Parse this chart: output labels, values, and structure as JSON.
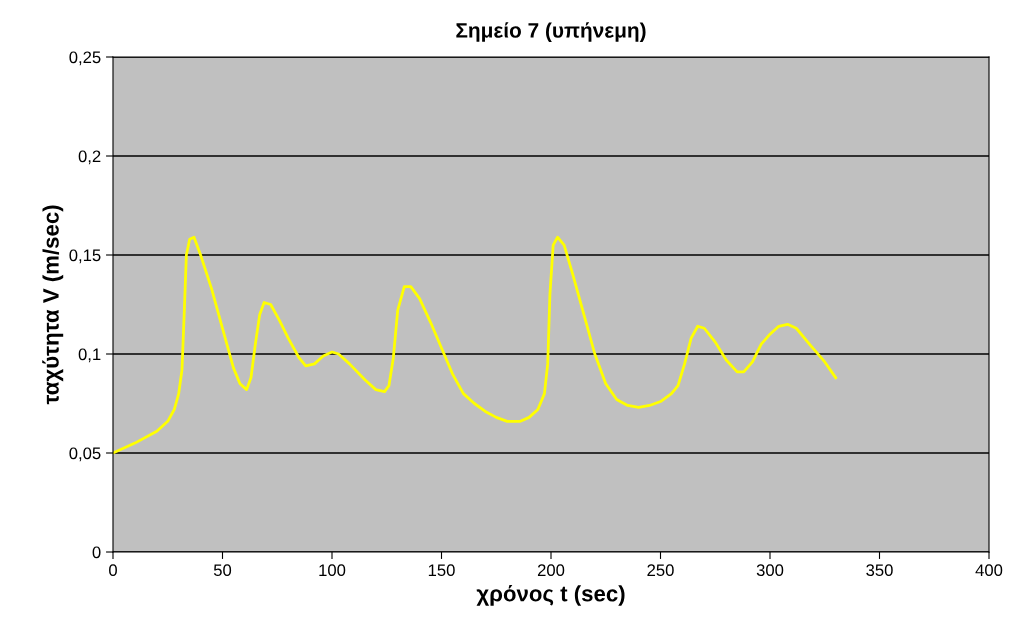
{
  "chart_data": {
    "type": "line",
    "title": "Σημείο 7 (υπήνεμη)",
    "xlabel": "χρόνος t (sec)",
    "ylabel": "ταχύτητα V (m/sec)",
    "series": [
      {
        "color": "#ffff00",
        "x": [
          0,
          10,
          20,
          25,
          28,
          30,
          31.5,
          32.5,
          33.5,
          35,
          37,
          40,
          45,
          50,
          55,
          58,
          61,
          63,
          65,
          67,
          69,
          72,
          76,
          80,
          85,
          88,
          92,
          96,
          100,
          103,
          108,
          115,
          120,
          124,
          126,
          128,
          130,
          133,
          136,
          140,
          145,
          150,
          155,
          160,
          165,
          170,
          175,
          180,
          186,
          190,
          194,
          197,
          198.5,
          199.5,
          201,
          203,
          206,
          210,
          215,
          220,
          225,
          230,
          235,
          240,
          245,
          250,
          255,
          258,
          261,
          264,
          267,
          270,
          275,
          280,
          285,
          288,
          292,
          296,
          300,
          304,
          308,
          312,
          318,
          325,
          330
        ],
        "values": [
          0.05,
          0.055,
          0.061,
          0.066,
          0.072,
          0.08,
          0.092,
          0.12,
          0.15,
          0.158,
          0.159,
          0.15,
          0.133,
          0.113,
          0.093,
          0.085,
          0.082,
          0.088,
          0.105,
          0.12,
          0.126,
          0.125,
          0.117,
          0.108,
          0.098,
          0.094,
          0.095,
          0.099,
          0.101,
          0.1,
          0.095,
          0.087,
          0.082,
          0.081,
          0.084,
          0.098,
          0.122,
          0.134,
          0.134,
          0.128,
          0.116,
          0.103,
          0.09,
          0.08,
          0.075,
          0.071,
          0.068,
          0.066,
          0.066,
          0.068,
          0.072,
          0.08,
          0.095,
          0.13,
          0.155,
          0.159,
          0.155,
          0.14,
          0.12,
          0.1,
          0.085,
          0.077,
          0.074,
          0.073,
          0.074,
          0.076,
          0.08,
          0.084,
          0.095,
          0.108,
          0.114,
          0.113,
          0.106,
          0.097,
          0.091,
          0.091,
          0.096,
          0.105,
          0.11,
          0.114,
          0.115,
          0.113,
          0.105,
          0.096,
          0.088
        ]
      }
    ],
    "xlim": [
      0,
      400
    ],
    "xticks": [
      0,
      50,
      100,
      150,
      200,
      250,
      300,
      350,
      400
    ],
    "ylim": [
      0,
      0.25
    ],
    "yticks": [
      0,
      {
        "value": 0.05,
        "label": "0,05"
      },
      {
        "value": 0.1,
        "label": "0,1"
      },
      {
        "value": 0.15,
        "label": "0,15"
      },
      {
        "value": 0.2,
        "label": "0,2"
      },
      {
        "value": 0.25,
        "label": "0,25"
      }
    ],
    "grid": "y",
    "marker": "none",
    "line_style": "solid",
    "legend": false
  }
}
